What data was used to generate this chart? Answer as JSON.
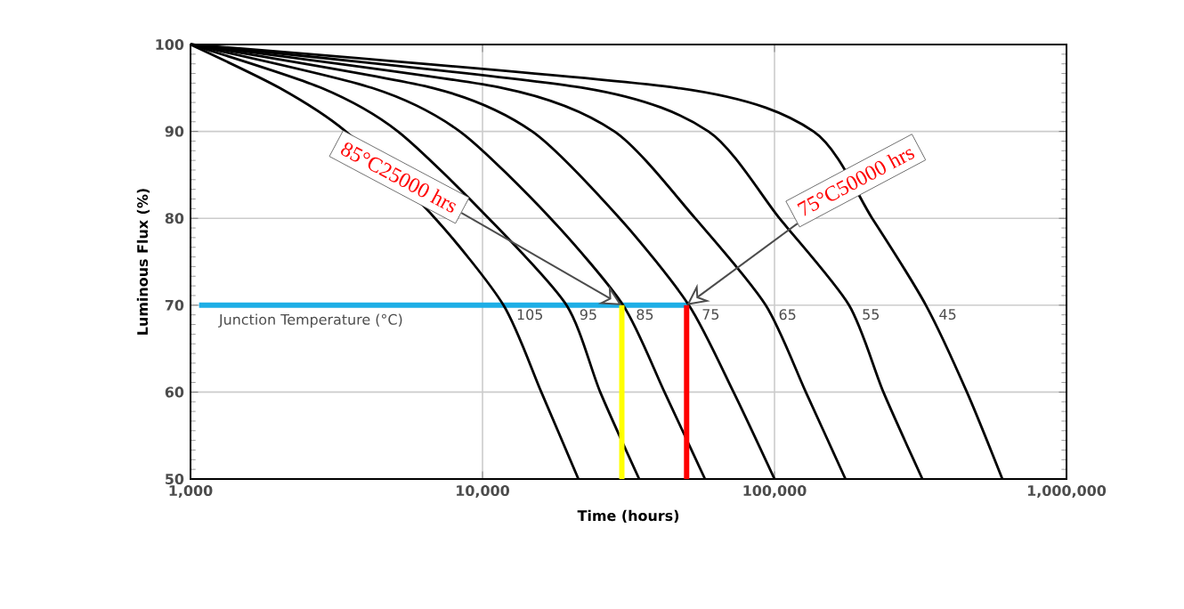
{
  "chart_data": {
    "type": "line",
    "xlabel": "Time (hours)",
    "ylabel": "Luminous Flux (%)",
    "log": "x",
    "grid": true,
    "xlim": [
      1000,
      1000000
    ],
    "ylim": [
      50,
      100
    ],
    "xticks": [
      {
        "value": 1000,
        "label": "1,000"
      },
      {
        "value": 10000,
        "label": "10,000"
      },
      {
        "value": 100000,
        "label": "100,000"
      },
      {
        "value": 1000000,
        "label": "1,000,000"
      }
    ],
    "yticks": [
      50,
      60,
      70,
      80,
      90,
      100
    ],
    "series": [
      {
        "color": "#1eaee6",
        "x": [
          1070,
          51000
        ],
        "values": [
          70,
          70
        ]
      },
      {
        "name": "105",
        "color": "#000000",
        "x": [
          1000,
          2020,
          3400,
          6880,
          11800,
          15900,
          21300
        ],
        "values": [
          100,
          95,
          90,
          80,
          70,
          60,
          50
        ]
      },
      {
        "name": "95",
        "color": "#000000",
        "x": [
          1000,
          2810,
          5130,
          10500,
          19400,
          25300,
          34400
        ],
        "values": [
          100,
          95,
          90,
          80,
          70,
          60,
          50
        ]
      },
      {
        "name": "85",
        "color": "#000000",
        "x": [
          1000,
          4190,
          8360,
          17100,
          30300,
          42000,
          57800
        ],
        "values": [
          100,
          95,
          90,
          80,
          70,
          60,
          50
        ]
      },
      {
        "name": "75",
        "color": "#000000",
        "x": [
          1000,
          6760,
          14800,
          29500,
          50900,
          72400,
          100000
        ],
        "values": [
          100,
          95,
          90,
          80,
          70,
          60,
          50
        ]
      },
      {
        "name": "65",
        "color": "#000000",
        "x": [
          1000,
          11700,
          28300,
          53500,
          93300,
          128000,
          175000
        ],
        "values": [
          100,
          95,
          90,
          80,
          70,
          60,
          50
        ]
      },
      {
        "name": "55",
        "color": "#000000",
        "x": [
          1000,
          22300,
          59400,
          104000,
          180000,
          236000,
          321000
        ],
        "values": [
          100,
          95,
          90,
          80,
          70,
          60,
          50
        ]
      },
      {
        "name": "45",
        "color": "#000000",
        "x": [
          1000,
          46600,
          136000,
          216000,
          330000,
          456000,
          603000
        ],
        "values": [
          100,
          95,
          90,
          80,
          70,
          60,
          50
        ]
      },
      {
        "color": "#ffff00",
        "x": [
          30000,
          30000
        ],
        "values": [
          50,
          70
        ]
      },
      {
        "color": "#ff0000",
        "x": [
          50000,
          50000
        ],
        "values": [
          50,
          70
        ]
      }
    ],
    "annotations": [
      "Junction Temperature (°C)",
      {
        "text": "85°C25000 hrs",
        "x": 30000,
        "y": 70
      },
      {
        "text": "75°C50000 hrs",
        "x": 50000,
        "y": 70
      }
    ]
  }
}
